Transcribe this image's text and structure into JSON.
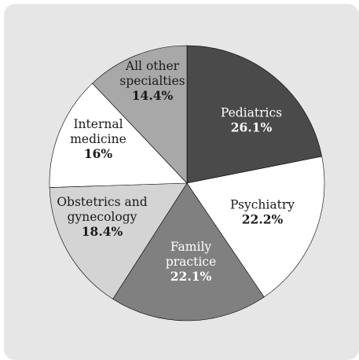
{
  "chart_data": {
    "type": "pie",
    "title": "",
    "start_angle_deg": 0,
    "direction": "clockwise",
    "slices": [
      {
        "name": "pediatrics",
        "label_lines": [
          "Pediatrics"
        ],
        "value": 26.1,
        "value_label": "26.1%",
        "color": "#4a4a4a",
        "text_color": "#ffffff"
      },
      {
        "name": "psychiatry",
        "label_lines": [
          "Psychiatry"
        ],
        "value": 22.2,
        "value_label": "22.2%",
        "color": "#ffffff",
        "text_color": "#1a1a1a"
      },
      {
        "name": "family-practice",
        "label_lines": [
          "Family",
          "practice"
        ],
        "value": 22.1,
        "value_label": "22.1%",
        "color": "#808080",
        "text_color": "#ffffff"
      },
      {
        "name": "obstetrics-and-gynecology",
        "label_lines": [
          "Obstetrics and",
          "gynecology"
        ],
        "value": 18.4,
        "value_label": "18.4%",
        "color": "#d4d4d4",
        "text_color": "#1a1a1a"
      },
      {
        "name": "internal-medicine",
        "label_lines": [
          "Internal",
          "medicine"
        ],
        "value": 16,
        "value_label": "16%",
        "color": "#ffffff",
        "text_color": "#1a1a1a"
      },
      {
        "name": "all-other-specialties",
        "label_lines": [
          "All other",
          "specialties"
        ],
        "value": 14.4,
        "value_label": "14.4%",
        "color": "#a8a8a8",
        "text_color": "#1a1a1a"
      }
    ]
  }
}
